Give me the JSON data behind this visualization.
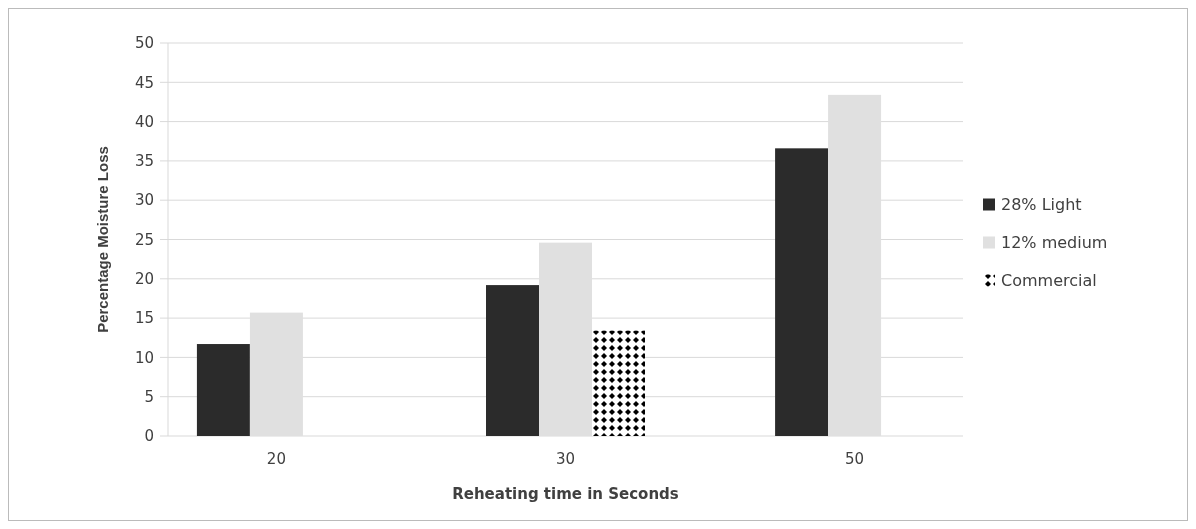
{
  "chart_data": {
    "type": "bar",
    "xlabel": "Reheating time in Seconds",
    "ylabel": "Percentage Moisture Loss",
    "categories": [
      "20",
      "30",
      "50"
    ],
    "series": [
      {
        "name": "28% Light",
        "color": "#2b2b2b",
        "values": [
          11.7,
          19.2,
          36.6
        ]
      },
      {
        "name": "12% medium",
        "color": "#e0e0e0",
        "values": [
          15.7,
          24.6,
          43.4
        ]
      },
      {
        "name": "Commercial",
        "color": "#000000",
        "values": [
          null,
          13.4,
          null
        ]
      }
    ],
    "ylim": [
      0,
      50
    ],
    "yticks": [
      0,
      5,
      10,
      15,
      20,
      25,
      30,
      35,
      40,
      45,
      50
    ],
    "grid": "y",
    "legend": "right"
  }
}
